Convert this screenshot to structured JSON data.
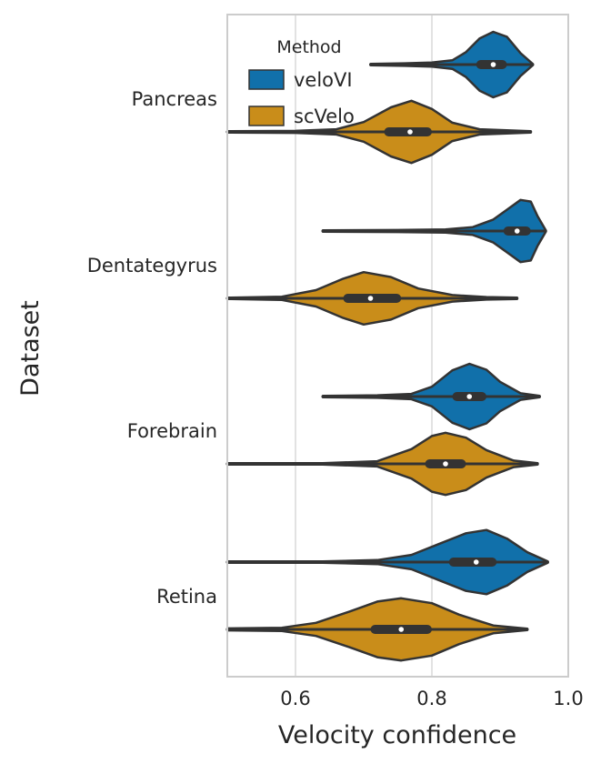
{
  "chart_data": {
    "type": "violin",
    "orientation": "horizontal",
    "xlabel": "Velocity confidence",
    "ylabel": "Dataset",
    "xlim": [
      0.5,
      1.0
    ],
    "xticks": [
      "0.6",
      "0.8",
      "1.0"
    ],
    "grid": "vertical",
    "categories": [
      "Pancreas",
      "Dentategyrus",
      "Forebrain",
      "Retina"
    ],
    "legend": {
      "title": "Method",
      "placement": "top-left"
    },
    "colors": {
      "veloVI": "#1170aa",
      "scVelo": "#c98d1a",
      "outline": "#333333",
      "grid": "#d9d9d9",
      "frame": "#cccccc"
    },
    "series": [
      {
        "name": "veloVI",
        "violins": [
          {
            "category": "Pancreas",
            "min": 0.71,
            "q1": 0.865,
            "median": 0.89,
            "q3": 0.91,
            "max": 0.948,
            "density": [
              [
                0.71,
                0.02
              ],
              [
                0.76,
                0.04
              ],
              [
                0.8,
                0.06
              ],
              [
                0.83,
                0.13
              ],
              [
                0.85,
                0.38
              ],
              [
                0.87,
                0.8
              ],
              [
                0.89,
                1.0
              ],
              [
                0.91,
                0.85
              ],
              [
                0.93,
                0.35
              ],
              [
                0.948,
                0.02
              ]
            ]
          },
          {
            "category": "Dentategyrus",
            "min": 0.64,
            "q1": 0.905,
            "median": 0.925,
            "q3": 0.945,
            "max": 0.967,
            "density": [
              [
                0.64,
                0.02
              ],
              [
                0.75,
                0.03
              ],
              [
                0.82,
                0.05
              ],
              [
                0.86,
                0.12
              ],
              [
                0.89,
                0.35
              ],
              [
                0.91,
                0.65
              ],
              [
                0.93,
                0.95
              ],
              [
                0.945,
                0.9
              ],
              [
                0.955,
                0.45
              ],
              [
                0.967,
                0.02
              ]
            ]
          },
          {
            "category": "Forebrain",
            "min": 0.64,
            "q1": 0.83,
            "median": 0.855,
            "q3": 0.88,
            "max": 0.958,
            "density": [
              [
                0.64,
                0.02
              ],
              [
                0.72,
                0.04
              ],
              [
                0.77,
                0.08
              ],
              [
                0.8,
                0.3
              ],
              [
                0.83,
                0.8
              ],
              [
                0.855,
                1.0
              ],
              [
                0.88,
                0.82
              ],
              [
                0.9,
                0.45
              ],
              [
                0.93,
                0.1
              ],
              [
                0.958,
                0.02
              ]
            ]
          },
          {
            "category": "Retina",
            "min": 0.5,
            "q1": 0.825,
            "median": 0.865,
            "q3": 0.895,
            "max": 0.97,
            "density": [
              [
                0.5,
                0.02
              ],
              [
                0.64,
                0.02
              ],
              [
                0.72,
                0.06
              ],
              [
                0.77,
                0.22
              ],
              [
                0.81,
                0.55
              ],
              [
                0.85,
                0.88
              ],
              [
                0.88,
                0.98
              ],
              [
                0.91,
                0.72
              ],
              [
                0.94,
                0.3
              ],
              [
                0.97,
                0.02
              ]
            ]
          }
        ]
      },
      {
        "name": "scVelo",
        "violins": [
          {
            "category": "Pancreas",
            "min": 0.5,
            "q1": 0.73,
            "median": 0.768,
            "q3": 0.8,
            "max": 0.945,
            "density": [
              [
                0.5,
                0.02
              ],
              [
                0.6,
                0.03
              ],
              [
                0.66,
                0.08
              ],
              [
                0.7,
                0.3
              ],
              [
                0.74,
                0.75
              ],
              [
                0.77,
                0.95
              ],
              [
                0.8,
                0.7
              ],
              [
                0.83,
                0.28
              ],
              [
                0.87,
                0.08
              ],
              [
                0.945,
                0.02
              ]
            ]
          },
          {
            "category": "Dentategyrus",
            "min": 0.5,
            "q1": 0.67,
            "median": 0.71,
            "q3": 0.755,
            "max": 0.925,
            "density": [
              [
                0.5,
                0.02
              ],
              [
                0.58,
                0.05
              ],
              [
                0.63,
                0.25
              ],
              [
                0.67,
                0.6
              ],
              [
                0.7,
                0.8
              ],
              [
                0.74,
                0.65
              ],
              [
                0.78,
                0.3
              ],
              [
                0.83,
                0.1
              ],
              [
                0.88,
                0.04
              ],
              [
                0.925,
                0.02
              ]
            ]
          },
          {
            "category": "Forebrain",
            "min": 0.5,
            "q1": 0.79,
            "median": 0.82,
            "q3": 0.85,
            "max": 0.955,
            "density": [
              [
                0.5,
                0.02
              ],
              [
                0.64,
                0.02
              ],
              [
                0.72,
                0.08
              ],
              [
                0.77,
                0.45
              ],
              [
                0.8,
                0.85
              ],
              [
                0.82,
                0.95
              ],
              [
                0.85,
                0.8
              ],
              [
                0.88,
                0.42
              ],
              [
                0.92,
                0.1
              ],
              [
                0.955,
                0.02
              ]
            ]
          },
          {
            "category": "Retina",
            "min": 0.5,
            "q1": 0.71,
            "median": 0.755,
            "q3": 0.8,
            "max": 0.94,
            "density": [
              [
                0.5,
                0.03
              ],
              [
                0.58,
                0.05
              ],
              [
                0.63,
                0.2
              ],
              [
                0.68,
                0.55
              ],
              [
                0.72,
                0.85
              ],
              [
                0.755,
                0.95
              ],
              [
                0.8,
                0.8
              ],
              [
                0.84,
                0.45
              ],
              [
                0.89,
                0.12
              ],
              [
                0.94,
                0.02
              ]
            ]
          }
        ]
      }
    ]
  }
}
